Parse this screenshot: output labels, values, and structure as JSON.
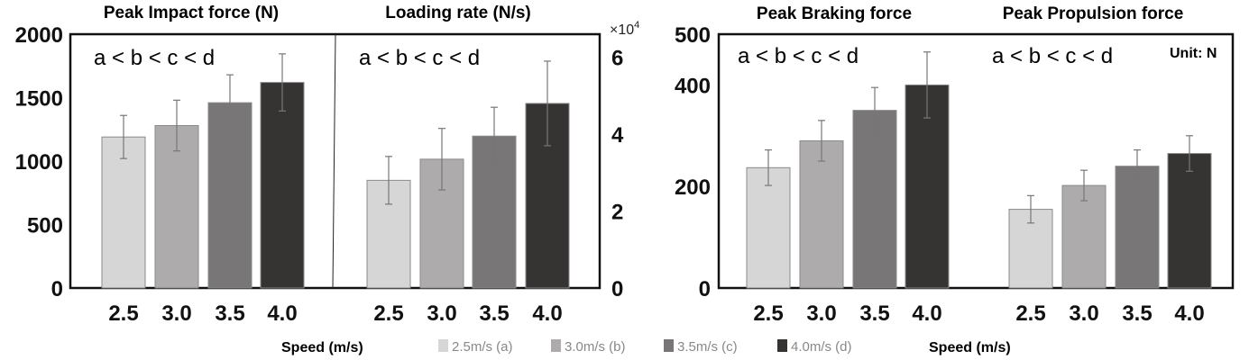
{
  "colors": {
    "a": "#d6d6d6",
    "b": "#adabab",
    "c": "#787676",
    "d": "#363333",
    "frame": "#111111",
    "errorbar": "#777777"
  },
  "legend": [
    {
      "key": "a",
      "label": "2.5m/s (a)"
    },
    {
      "key": "b",
      "label": "3.0m/s (b)"
    },
    {
      "key": "c",
      "label": "3.5m/s (c)"
    },
    {
      "key": "d",
      "label": "4.0m/s (d)"
    }
  ],
  "chart_data": [
    {
      "type": "bar",
      "title": "Peak Impact force (N)",
      "annotation": "a < b < c < d",
      "categories": [
        "2.5",
        "3.0",
        "3.5",
        "4.0"
      ],
      "values": [
        1190,
        1280,
        1460,
        1620
      ],
      "errors": [
        170,
        200,
        220,
        225
      ],
      "ylim": [
        0,
        2000
      ],
      "yticks": [
        {
          "v": 0,
          "label": "0"
        },
        {
          "v": 500,
          "label": "500"
        },
        {
          "v": 1000,
          "label": "1000"
        },
        {
          "v": 1500,
          "label": "1500"
        },
        {
          "v": 2000,
          "label": "2000"
        }
      ],
      "y_axis_side": "left"
    },
    {
      "type": "bar",
      "title": "Loading rate (N/s)",
      "annotation": "a < b < c < d",
      "categories": [
        "2.5",
        "3.0",
        "3.5",
        "4.0"
      ],
      "values": [
        2.8,
        3.35,
        3.95,
        4.8
      ],
      "errors": [
        0.62,
        0.8,
        0.75,
        1.1
      ],
      "ylim": [
        0,
        6.6
      ],
      "yticks": [
        {
          "v": 0,
          "label": "0"
        },
        {
          "v": 2,
          "label": "2"
        },
        {
          "v": 4,
          "label": "4"
        },
        {
          "v": 6,
          "label": "6"
        }
      ],
      "y_axis_side": "right",
      "multiplier_label": "×10",
      "multiplier_exponent": "4"
    },
    {
      "type": "bar",
      "title": "Peak Braking force",
      "annotation": "a < b < c < d",
      "categories": [
        "2.5",
        "3.0",
        "3.5",
        "4.0"
      ],
      "values": [
        237,
        290,
        350,
        400
      ],
      "errors": [
        35,
        40,
        45,
        65
      ],
      "ylim": [
        0,
        500
      ],
      "yticks": [
        {
          "v": 0,
          "label": "0"
        },
        {
          "v": 200,
          "label": "200"
        },
        {
          "v": 400,
          "label": "400"
        },
        {
          "v": 500,
          "label": "500"
        }
      ],
      "y_axis_side": "left"
    },
    {
      "type": "bar",
      "title": "Peak Propulsion force",
      "annotation": "a < b < c < d",
      "categories": [
        "2.5",
        "3.0",
        "3.5",
        "4.0"
      ],
      "values": [
        155,
        202,
        240,
        265
      ],
      "errors": [
        27,
        30,
        32,
        35
      ],
      "ylim": [
        0,
        500
      ],
      "y_axis_side": "none",
      "unit_label": "Unit: N"
    }
  ],
  "xlabels": [
    "Speed (m/s)",
    "Speed (m/s)"
  ]
}
